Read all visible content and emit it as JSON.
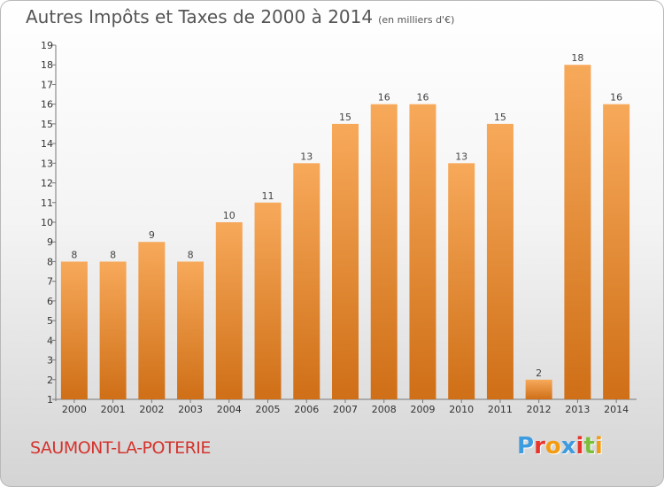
{
  "header": {
    "title": "Autres Impôts et Taxes de 2000 à 2014",
    "unit": "(en milliers d'€)"
  },
  "commune": "SAUMONT-LA-POTERIE",
  "logo": {
    "letters": [
      "P",
      "r",
      "o",
      "x",
      "i",
      "t",
      "i"
    ],
    "colors": [
      "#3d9be0",
      "#e8342a",
      "#f39c12",
      "#3d9be0",
      "#e8342a",
      "#7cbf3a",
      "#f39c12"
    ]
  },
  "colors": {
    "bar_top": "#f7a95a",
    "bar_bottom": "#cf6f17",
    "title": "#555555",
    "commune": "#d4332d"
  },
  "chart_data": {
    "type": "bar",
    "title": "Autres Impôts et Taxes de 2000 à 2014",
    "categories": [
      "2000",
      "2001",
      "2002",
      "2003",
      "2004",
      "2005",
      "2006",
      "2007",
      "2008",
      "2009",
      "2010",
      "2011",
      "2012",
      "2013",
      "2014"
    ],
    "values": [
      8,
      8,
      9,
      8,
      10,
      11,
      13,
      15,
      16,
      16,
      13,
      15,
      2,
      18,
      16
    ],
    "y_ticks": [
      "1",
      "2",
      "3",
      "4",
      "5",
      "6",
      "7",
      "8",
      "9",
      "10",
      "11",
      "12",
      "13",
      "14",
      "15",
      "16",
      "17",
      "18",
      "19"
    ],
    "ylim": [
      1,
      19
    ],
    "grid": false,
    "data_labels": true
  }
}
